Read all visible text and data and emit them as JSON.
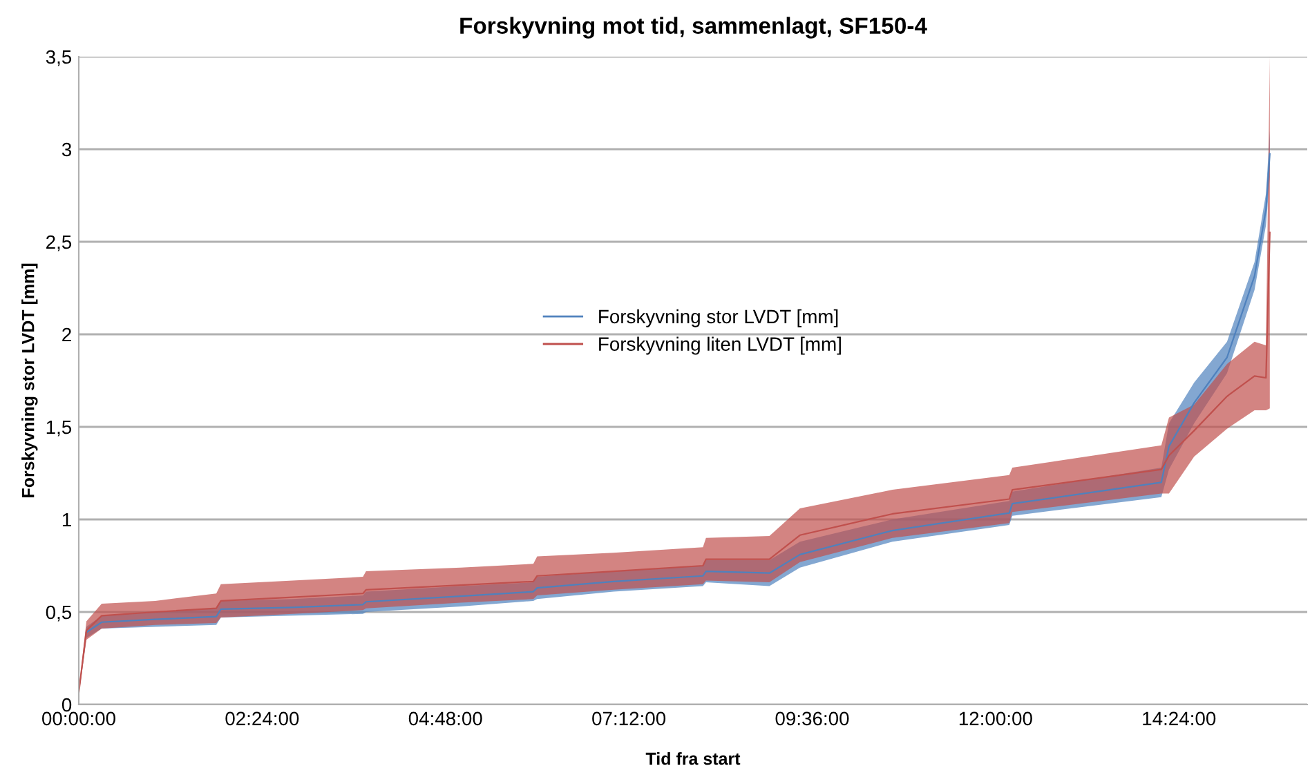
{
  "chart_data": {
    "type": "line",
    "title": "Forskyvning mot tid, sammenlagt, SF150-4",
    "xlabel": "Tid fra start",
    "ylabel": "Forskyvning stor LVDT [mm]",
    "x": [
      0,
      0.1,
      0.3,
      1.0,
      1.8,
      1.86,
      2.8,
      3.72,
      3.76,
      5.0,
      5.95,
      6.0,
      7.0,
      8.17,
      8.21,
      9.04,
      9.44,
      10.65,
      12.18,
      12.22,
      14.17,
      14.27,
      14.6,
      15.03,
      15.39,
      15.54,
      15.59
    ],
    "series": [
      {
        "name": "Forskyvning stor LVDT [mm]",
        "color": "#4f81bd",
        "values": [
          null,
          0.39,
          0.445,
          0.46,
          0.475,
          0.515,
          0.525,
          0.54,
          0.555,
          0.585,
          0.61,
          0.63,
          0.665,
          0.695,
          0.72,
          0.71,
          0.81,
          0.94,
          1.035,
          1.085,
          1.2,
          1.395,
          1.63,
          1.875,
          2.315,
          2.675,
          2.975
        ],
        "lower": [
          0.05,
          0.36,
          0.41,
          0.42,
          0.43,
          0.47,
          0.48,
          0.49,
          0.5,
          0.53,
          0.56,
          0.57,
          0.61,
          0.64,
          0.66,
          0.64,
          0.74,
          0.88,
          0.97,
          1.02,
          1.12,
          1.27,
          1.52,
          1.79,
          2.24,
          2.59,
          2.85
        ],
        "upper": [
          0.08,
          0.42,
          0.48,
          0.5,
          0.52,
          0.56,
          0.57,
          0.59,
          0.61,
          0.64,
          0.66,
          0.69,
          0.72,
          0.75,
          0.78,
          0.78,
          0.88,
          1.0,
          1.1,
          1.15,
          1.28,
          1.52,
          1.74,
          1.96,
          2.39,
          2.76,
          3.1
        ]
      },
      {
        "name": "Forskyvning liten LVDT [mm]",
        "color": "#c0504d",
        "values": [
          0.065,
          0.4,
          0.48,
          0.5,
          0.52,
          0.56,
          0.58,
          0.6,
          0.62,
          0.645,
          0.665,
          0.695,
          0.72,
          0.75,
          0.785,
          0.785,
          0.915,
          1.03,
          1.11,
          1.16,
          1.27,
          1.345,
          1.48,
          1.665,
          1.775,
          1.765,
          2.55
        ],
        "lower": [
          0.05,
          0.35,
          0.41,
          0.43,
          0.44,
          0.47,
          0.49,
          0.51,
          0.52,
          0.55,
          0.57,
          0.59,
          0.62,
          0.65,
          0.67,
          0.66,
          0.77,
          0.9,
          0.98,
          1.04,
          1.14,
          1.14,
          1.34,
          1.49,
          1.59,
          1.59,
          1.6
        ],
        "upper": [
          0.08,
          0.45,
          0.545,
          0.56,
          0.6,
          0.65,
          0.67,
          0.69,
          0.72,
          0.74,
          0.76,
          0.8,
          0.82,
          0.85,
          0.9,
          0.91,
          1.06,
          1.16,
          1.24,
          1.28,
          1.4,
          1.55,
          1.62,
          1.84,
          1.96,
          1.94,
          3.5
        ]
      }
    ],
    "xlim": [
      0,
      16.08
    ],
    "xticks": [
      {
        "value": 0,
        "label": "00:00:00"
      },
      {
        "value": 2.4,
        "label": "02:24:00"
      },
      {
        "value": 4.8,
        "label": "04:48:00"
      },
      {
        "value": 7.2,
        "label": "07:12:00"
      },
      {
        "value": 9.6,
        "label": "09:36:00"
      },
      {
        "value": 12,
        "label": "12:00:00"
      },
      {
        "value": 14.4,
        "label": "14:24:00"
      }
    ],
    "ylim": [
      0,
      3.5
    ],
    "yticks": [
      0,
      {
        "value": 0.5,
        "label": "0,5"
      },
      1,
      {
        "value": 1.5,
        "label": "1,5"
      },
      2,
      {
        "value": 2.5,
        "label": "2,5"
      },
      3,
      {
        "value": 3.5,
        "label": "3,5"
      }
    ],
    "grid": "y",
    "legend": "center",
    "marker": "none",
    "line_style": "solid"
  }
}
